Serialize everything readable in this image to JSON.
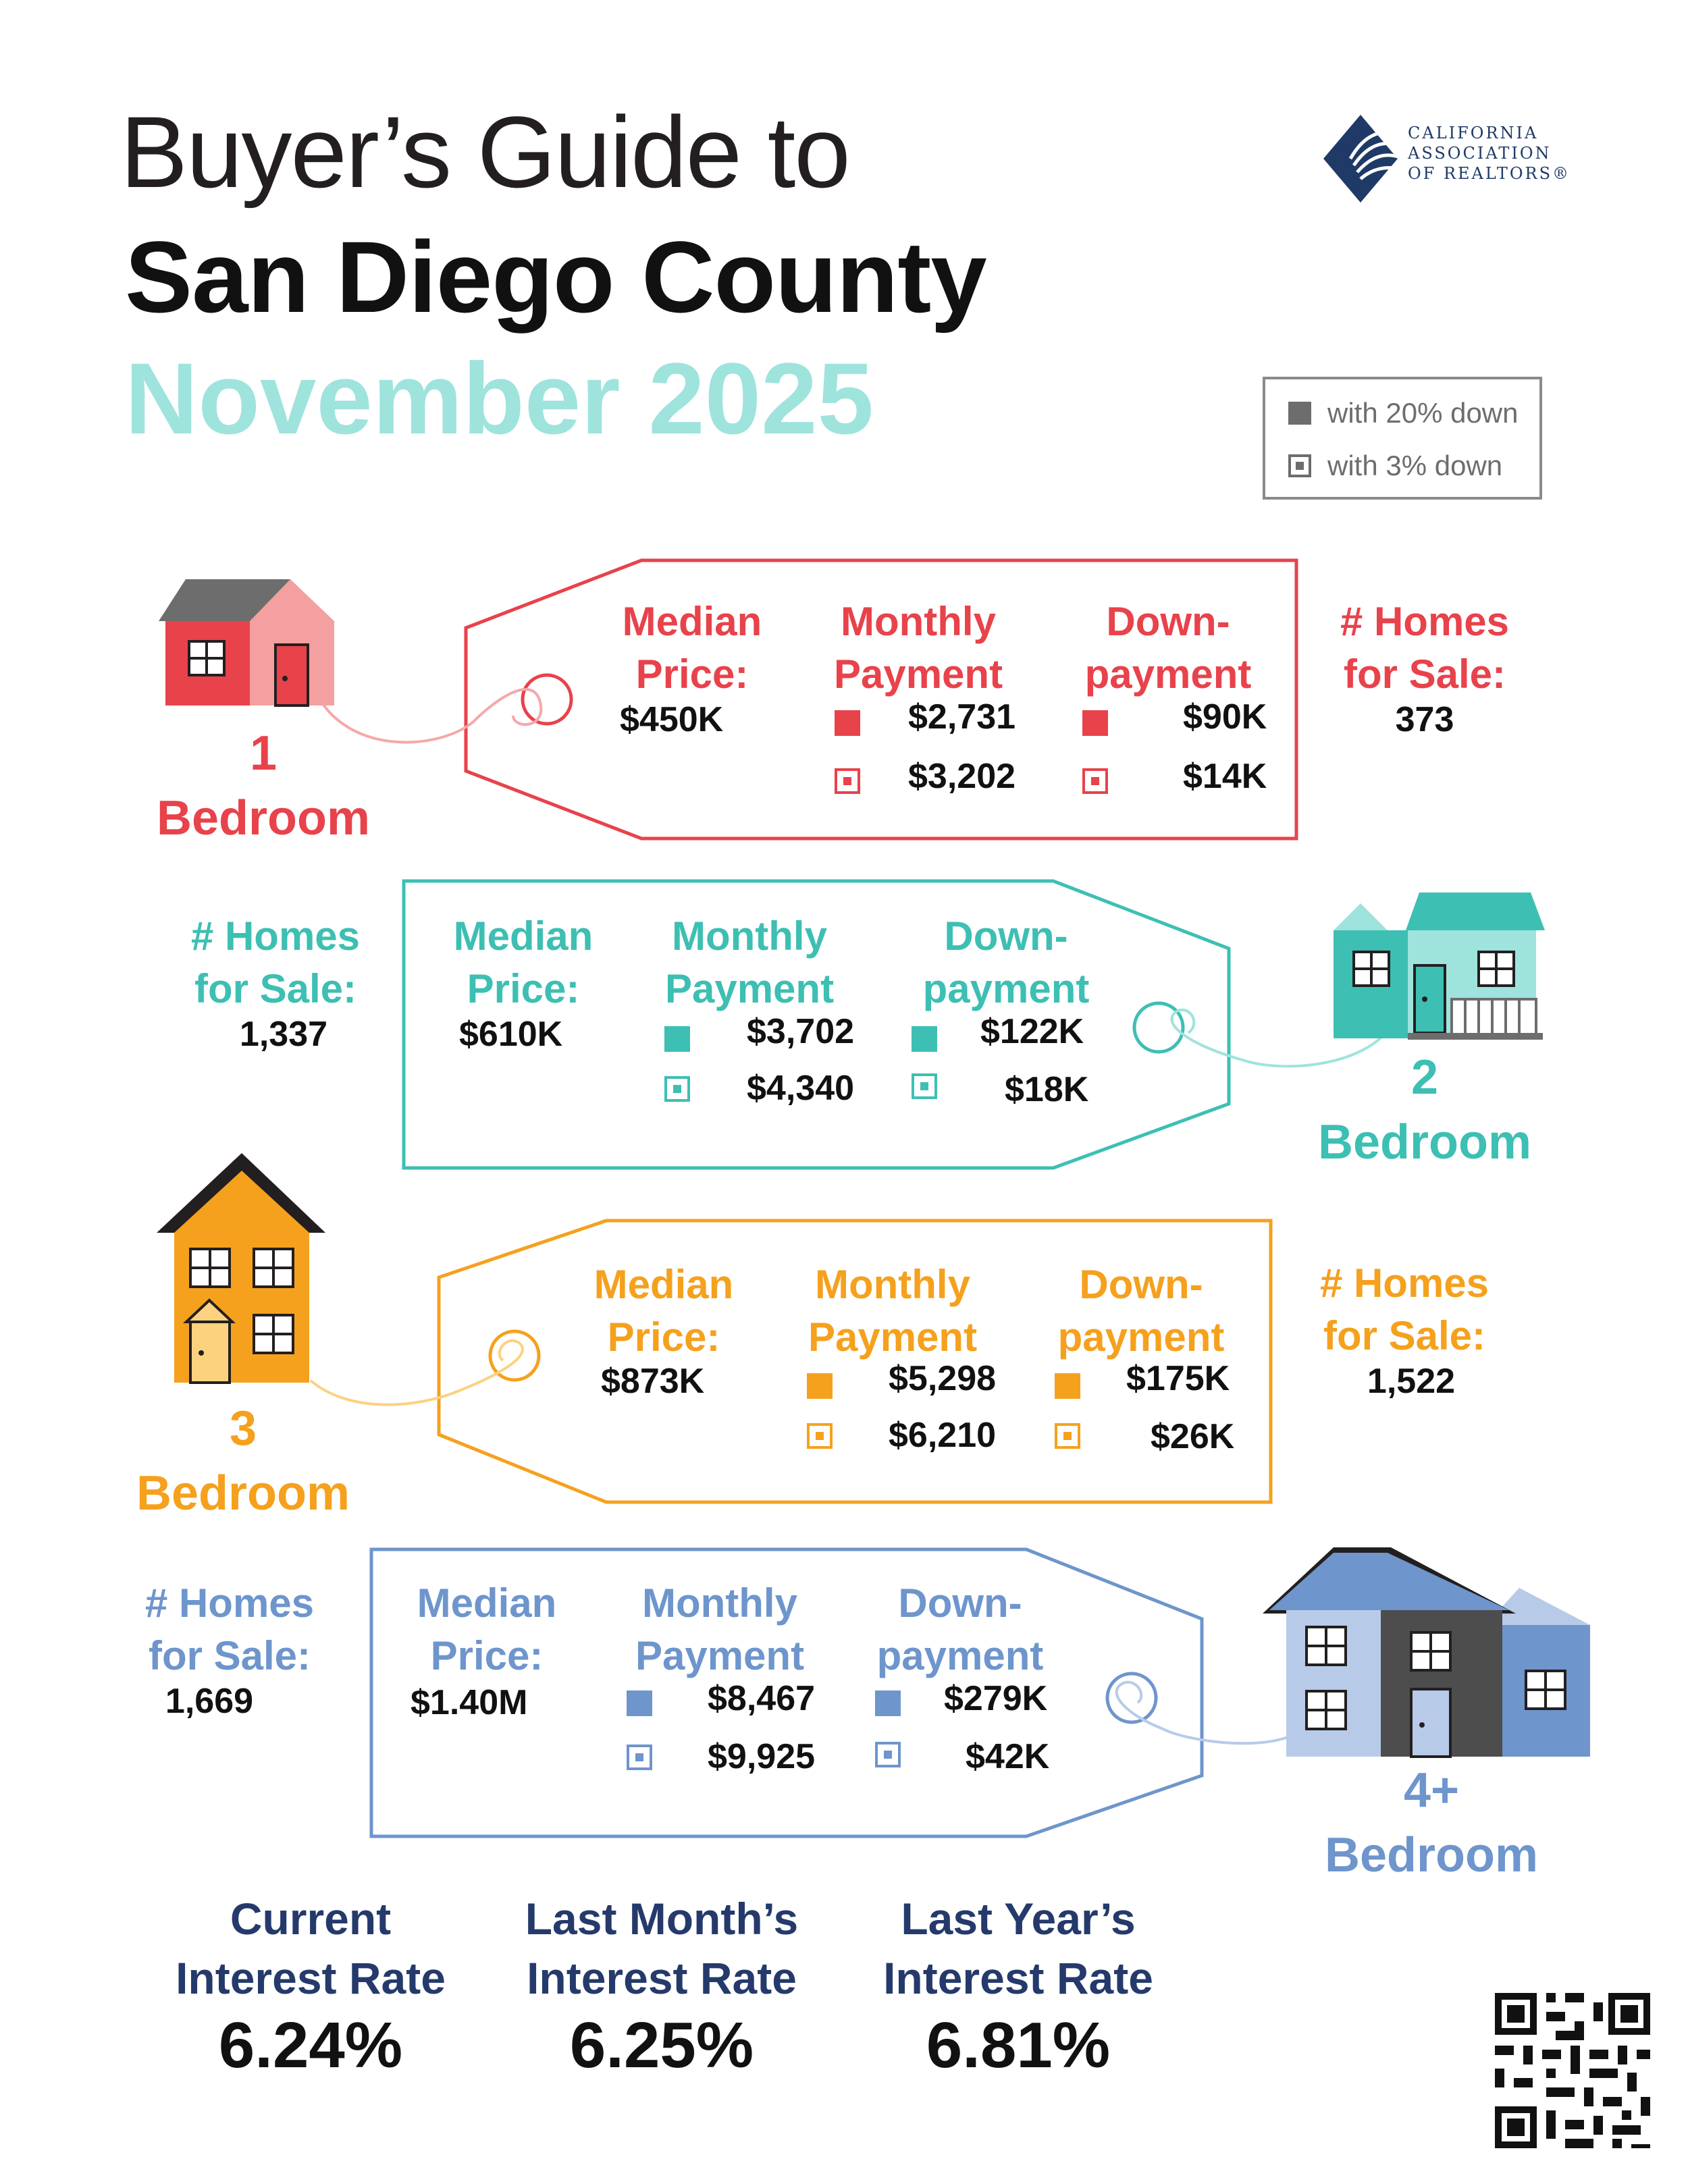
{
  "title": {
    "line1": "Buyer’s Guide to",
    "line2": "San Diego County",
    "line3": "November 2025"
  },
  "logo": {
    "line1": "CALIFORNIA",
    "line2": "ASSOCIATION",
    "line3": "OF REALTORS®"
  },
  "legend": {
    "solid_label": "with 20% down",
    "hollow_label": "with 3% down"
  },
  "headers": {
    "median_1": "Median",
    "median_2": "Price:",
    "monthly_1": "Monthly",
    "monthly_2": "Payment",
    "down_1": "Down-",
    "down_2": "payment",
    "homes_1": "# Homes",
    "homes_2": "for Sale:"
  },
  "tiers": [
    {
      "count": "1",
      "label": "Bedroom",
      "color": "#e8424b",
      "median": "$450K",
      "monthly_20": "$2,731",
      "monthly_3": "$3,202",
      "down_20": "$90K",
      "down_3": "$14K",
      "homes": "373"
    },
    {
      "count": "2",
      "label": "Bedroom",
      "color": "#3dbfb3",
      "median": "$610K",
      "monthly_20": "$3,702",
      "monthly_3": "$4,340",
      "down_20": "$122K",
      "down_3": "$18K",
      "homes": "1,337"
    },
    {
      "count": "3",
      "label": "Bedroom",
      "color": "#f5a11d",
      "median": "$873K",
      "monthly_20": "$5,298",
      "monthly_3": "$6,210",
      "down_20": "$175K",
      "down_3": "$26K",
      "homes": "1,522"
    },
    {
      "count": "4+",
      "label": "Bedroom",
      "color": "#6e95cc",
      "median": "$1.40M",
      "monthly_20": "$8,467",
      "monthly_3": "$9,925",
      "down_20": "$279K",
      "down_3": "$42K",
      "homes": "1,669"
    }
  ],
  "rates": {
    "current_1": "Current",
    "current_2": "Interest Rate",
    "current_value": "6.24%",
    "last_month_1": "Last Month’s",
    "last_month_2": "Interest Rate",
    "last_month_value": "6.25%",
    "last_year_1": "Last Year’s",
    "last_year_2": "Interest Rate",
    "last_year_value": "6.81%"
  },
  "colors": {
    "title_teal": "#9fe3dd",
    "rate_navy": "#253a6b"
  }
}
